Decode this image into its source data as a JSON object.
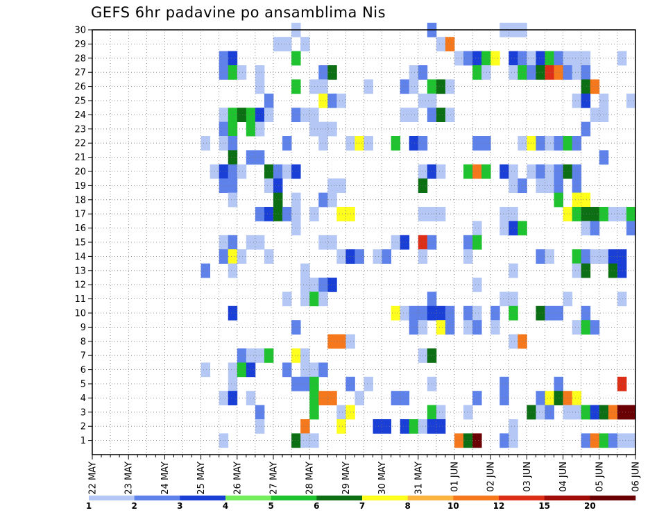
{
  "chart_data": {
    "type": "heatmap",
    "title": "GEFS 6hr padavine po ansamblima Nis",
    "x_tick_labels": [
      "22 MAY",
      "23 MAY",
      "24 MAY",
      "25 MAY",
      "26 MAY",
      "27 MAY",
      "28 MAY",
      "29 MAY",
      "30 MAY",
      "31 MAY",
      "01 JUN",
      "02 JUN",
      "03 JUN",
      "04 JUN",
      "05 JUN",
      "06 JUN"
    ],
    "y_tick_labels": [
      "1",
      "2",
      "3",
      "4",
      "5",
      "6",
      "7",
      "8",
      "9",
      "10",
      "11",
      "12",
      "13",
      "14",
      "15",
      "16",
      "17",
      "18",
      "19",
      "20",
      "21",
      "22",
      "23",
      "24",
      "25",
      "26",
      "27",
      "28",
      "29",
      "30"
    ],
    "x_steps_per_day": 4,
    "x_range_steps": [
      0,
      60
    ],
    "y_range": [
      0,
      30
    ],
    "grid": true,
    "colorbar": {
      "levels": [
        "1",
        "2",
        "3",
        "4",
        "5",
        "6",
        "7",
        "8",
        "10",
        "12",
        "15",
        "20"
      ],
      "colors": [
        "#b4c7f5",
        "#5e82ea",
        "#1a3fd6",
        "#74ee5c",
        "#1fc32f",
        "#0c6f14",
        "#ffff1e",
        "#fbb43f",
        "#f6781d",
        "#dd2f17",
        "#a20c07",
        "#6a0003"
      ]
    },
    "cells_note": "[x_step, y_member, color_index]",
    "cells": [
      [
        22,
        30,
        0
      ],
      [
        37,
        30,
        1
      ],
      [
        45,
        30,
        0
      ],
      [
        46,
        30,
        0
      ],
      [
        47,
        30,
        0
      ],
      [
        20,
        29,
        0
      ],
      [
        21,
        29,
        0
      ],
      [
        23,
        29,
        0
      ],
      [
        38,
        29,
        0
      ],
      [
        39,
        29,
        8
      ],
      [
        14,
        28,
        1
      ],
      [
        15,
        28,
        2
      ],
      [
        22,
        28,
        4
      ],
      [
        40,
        28,
        0
      ],
      [
        41,
        28,
        1
      ],
      [
        42,
        28,
        2
      ],
      [
        43,
        28,
        4
      ],
      [
        44,
        28,
        6
      ],
      [
        46,
        28,
        2
      ],
      [
        47,
        28,
        1
      ],
      [
        48,
        28,
        0
      ],
      [
        49,
        28,
        2
      ],
      [
        50,
        28,
        4
      ],
      [
        51,
        28,
        1
      ],
      [
        52,
        28,
        0
      ],
      [
        53,
        28,
        0
      ],
      [
        54,
        28,
        0
      ],
      [
        58,
        28,
        0
      ],
      [
        14,
        27,
        1
      ],
      [
        15,
        27,
        4
      ],
      [
        16,
        27,
        0
      ],
      [
        18,
        27,
        0
      ],
      [
        25,
        27,
        1
      ],
      [
        26,
        27,
        5
      ],
      [
        35,
        27,
        0
      ],
      [
        36,
        27,
        1
      ],
      [
        42,
        27,
        4
      ],
      [
        43,
        27,
        0
      ],
      [
        46,
        27,
        0
      ],
      [
        47,
        27,
        4
      ],
      [
        48,
        27,
        1
      ],
      [
        49,
        27,
        5
      ],
      [
        50,
        27,
        9
      ],
      [
        51,
        27,
        8
      ],
      [
        52,
        27,
        1
      ],
      [
        53,
        27,
        0
      ],
      [
        54,
        27,
        1
      ],
      [
        18,
        26,
        0
      ],
      [
        22,
        26,
        4
      ],
      [
        24,
        26,
        0
      ],
      [
        25,
        26,
        0
      ],
      [
        30,
        26,
        0
      ],
      [
        34,
        26,
        1
      ],
      [
        35,
        26,
        0
      ],
      [
        37,
        26,
        4
      ],
      [
        38,
        26,
        5
      ],
      [
        39,
        26,
        0
      ],
      [
        54,
        26,
        5
      ],
      [
        55,
        26,
        8
      ],
      [
        19,
        25,
        1
      ],
      [
        25,
        25,
        6
      ],
      [
        26,
        25,
        1
      ],
      [
        27,
        25,
        0
      ],
      [
        36,
        25,
        0
      ],
      [
        37,
        25,
        0
      ],
      [
        53,
        25,
        0
      ],
      [
        54,
        25,
        2
      ],
      [
        56,
        25,
        0
      ],
      [
        59,
        25,
        0
      ],
      [
        14,
        24,
        0
      ],
      [
        15,
        24,
        4
      ],
      [
        16,
        24,
        5
      ],
      [
        17,
        24,
        4
      ],
      [
        18,
        24,
        2
      ],
      [
        19,
        24,
        0
      ],
      [
        22,
        24,
        1
      ],
      [
        23,
        24,
        0
      ],
      [
        24,
        24,
        0
      ],
      [
        34,
        24,
        0
      ],
      [
        35,
        24,
        0
      ],
      [
        37,
        24,
        1
      ],
      [
        38,
        24,
        5
      ],
      [
        39,
        24,
        0
      ],
      [
        55,
        24,
        0
      ],
      [
        56,
        24,
        0
      ],
      [
        14,
        23,
        1
      ],
      [
        15,
        23,
        4
      ],
      [
        17,
        23,
        4
      ],
      [
        18,
        23,
        0
      ],
      [
        24,
        23,
        0
      ],
      [
        25,
        23,
        0
      ],
      [
        26,
        23,
        0
      ],
      [
        54,
        23,
        1
      ],
      [
        12,
        22,
        0
      ],
      [
        14,
        22,
        0
      ],
      [
        15,
        22,
        1
      ],
      [
        21,
        22,
        1
      ],
      [
        25,
        22,
        0
      ],
      [
        28,
        22,
        0
      ],
      [
        29,
        22,
        6
      ],
      [
        30,
        22,
        0
      ],
      [
        33,
        22,
        4
      ],
      [
        35,
        22,
        2
      ],
      [
        36,
        22,
        1
      ],
      [
        42,
        22,
        1
      ],
      [
        43,
        22,
        1
      ],
      [
        47,
        22,
        0
      ],
      [
        48,
        22,
        6
      ],
      [
        49,
        22,
        1
      ],
      [
        50,
        22,
        0
      ],
      [
        51,
        22,
        1
      ],
      [
        52,
        22,
        4
      ],
      [
        53,
        22,
        1
      ],
      [
        15,
        21,
        5
      ],
      [
        17,
        21,
        1
      ],
      [
        18,
        21,
        1
      ],
      [
        56,
        21,
        1
      ],
      [
        13,
        20,
        0
      ],
      [
        14,
        20,
        2
      ],
      [
        15,
        20,
        1
      ],
      [
        16,
        20,
        0
      ],
      [
        19,
        20,
        5
      ],
      [
        20,
        20,
        1
      ],
      [
        21,
        20,
        0
      ],
      [
        22,
        20,
        2
      ],
      [
        36,
        20,
        0
      ],
      [
        37,
        20,
        2
      ],
      [
        38,
        20,
        0
      ],
      [
        41,
        20,
        4
      ],
      [
        42,
        20,
        8
      ],
      [
        43,
        20,
        4
      ],
      [
        45,
        20,
        2
      ],
      [
        46,
        20,
        0
      ],
      [
        48,
        20,
        0
      ],
      [
        49,
        20,
        1
      ],
      [
        50,
        20,
        0
      ],
      [
        51,
        20,
        1
      ],
      [
        52,
        20,
        5
      ],
      [
        53,
        20,
        1
      ],
      [
        14,
        19,
        1
      ],
      [
        15,
        19,
        1
      ],
      [
        19,
        19,
        0
      ],
      [
        20,
        19,
        2
      ],
      [
        26,
        19,
        0
      ],
      [
        27,
        19,
        0
      ],
      [
        36,
        19,
        5
      ],
      [
        46,
        19,
        0
      ],
      [
        47,
        19,
        1
      ],
      [
        49,
        19,
        0
      ],
      [
        50,
        19,
        0
      ],
      [
        51,
        19,
        1
      ],
      [
        53,
        19,
        1
      ],
      [
        15,
        18,
        0
      ],
      [
        20,
        18,
        5
      ],
      [
        22,
        18,
        0
      ],
      [
        25,
        18,
        1
      ],
      [
        26,
        18,
        0
      ],
      [
        51,
        18,
        4
      ],
      [
        53,
        18,
        6
      ],
      [
        54,
        18,
        6
      ],
      [
        18,
        17,
        1
      ],
      [
        19,
        17,
        2
      ],
      [
        20,
        17,
        5
      ],
      [
        21,
        17,
        1
      ],
      [
        22,
        17,
        0
      ],
      [
        24,
        17,
        0
      ],
      [
        27,
        17,
        6
      ],
      [
        28,
        17,
        6
      ],
      [
        36,
        17,
        0
      ],
      [
        37,
        17,
        0
      ],
      [
        38,
        17,
        0
      ],
      [
        45,
        17,
        0
      ],
      [
        46,
        17,
        0
      ],
      [
        52,
        17,
        6
      ],
      [
        53,
        17,
        4
      ],
      [
        54,
        17,
        5
      ],
      [
        55,
        17,
        5
      ],
      [
        56,
        17,
        4
      ],
      [
        57,
        17,
        0
      ],
      [
        58,
        17,
        0
      ],
      [
        59,
        17,
        4
      ],
      [
        22,
        16,
        0
      ],
      [
        42,
        16,
        0
      ],
      [
        45,
        16,
        0
      ],
      [
        46,
        16,
        2
      ],
      [
        47,
        16,
        4
      ],
      [
        54,
        16,
        0
      ],
      [
        55,
        16,
        1
      ],
      [
        59,
        16,
        1
      ],
      [
        14,
        15,
        0
      ],
      [
        15,
        15,
        1
      ],
      [
        17,
        15,
        0
      ],
      [
        18,
        15,
        0
      ],
      [
        25,
        15,
        0
      ],
      [
        26,
        15,
        0
      ],
      [
        33,
        15,
        0
      ],
      [
        34,
        15,
        2
      ],
      [
        36,
        15,
        9
      ],
      [
        37,
        15,
        1
      ],
      [
        41,
        15,
        1
      ],
      [
        42,
        15,
        4
      ],
      [
        14,
        14,
        1
      ],
      [
        15,
        14,
        6
      ],
      [
        16,
        14,
        0
      ],
      [
        19,
        14,
        0
      ],
      [
        27,
        14,
        0
      ],
      [
        28,
        14,
        2
      ],
      [
        29,
        14,
        1
      ],
      [
        31,
        14,
        0
      ],
      [
        32,
        14,
        1
      ],
      [
        36,
        14,
        0
      ],
      [
        41,
        14,
        0
      ],
      [
        49,
        14,
        1
      ],
      [
        50,
        14,
        0
      ],
      [
        53,
        14,
        4
      ],
      [
        54,
        14,
        1
      ],
      [
        55,
        14,
        0
      ],
      [
        56,
        14,
        0
      ],
      [
        57,
        14,
        2
      ],
      [
        58,
        14,
        2
      ],
      [
        12,
        13,
        1
      ],
      [
        15,
        13,
        0
      ],
      [
        23,
        13,
        0
      ],
      [
        46,
        13,
        0
      ],
      [
        53,
        13,
        0
      ],
      [
        54,
        13,
        5
      ],
      [
        57,
        13,
        5
      ],
      [
        58,
        13,
        2
      ],
      [
        23,
        12,
        0
      ],
      [
        24,
        12,
        0
      ],
      [
        25,
        12,
        1
      ],
      [
        26,
        12,
        2
      ],
      [
        42,
        12,
        0
      ],
      [
        21,
        11,
        0
      ],
      [
        23,
        11,
        0
      ],
      [
        24,
        11,
        4
      ],
      [
        25,
        11,
        0
      ],
      [
        37,
        11,
        1
      ],
      [
        45,
        11,
        0
      ],
      [
        46,
        11,
        0
      ],
      [
        52,
        11,
        0
      ],
      [
        58,
        11,
        0
      ],
      [
        15,
        10,
        2
      ],
      [
        33,
        10,
        6
      ],
      [
        34,
        10,
        0
      ],
      [
        35,
        10,
        1
      ],
      [
        36,
        10,
        1
      ],
      [
        37,
        10,
        2
      ],
      [
        38,
        10,
        2
      ],
      [
        39,
        10,
        1
      ],
      [
        41,
        10,
        1
      ],
      [
        42,
        10,
        0
      ],
      [
        44,
        10,
        1
      ],
      [
        46,
        10,
        4
      ],
      [
        49,
        10,
        5
      ],
      [
        50,
        10,
        1
      ],
      [
        51,
        10,
        1
      ],
      [
        54,
        10,
        1
      ],
      [
        22,
        9,
        1
      ],
      [
        35,
        9,
        1
      ],
      [
        36,
        9,
        0
      ],
      [
        38,
        9,
        6
      ],
      [
        39,
        9,
        1
      ],
      [
        41,
        9,
        0
      ],
      [
        42,
        9,
        1
      ],
      [
        44,
        9,
        0
      ],
      [
        53,
        9,
        0
      ],
      [
        54,
        9,
        4
      ],
      [
        55,
        9,
        1
      ],
      [
        26,
        8,
        8
      ],
      [
        27,
        8,
        8
      ],
      [
        28,
        8,
        0
      ],
      [
        46,
        8,
        0
      ],
      [
        47,
        8,
        8
      ],
      [
        16,
        7,
        1
      ],
      [
        17,
        7,
        0
      ],
      [
        18,
        7,
        0
      ],
      [
        19,
        7,
        4
      ],
      [
        22,
        7,
        6
      ],
      [
        23,
        7,
        0
      ],
      [
        36,
        7,
        0
      ],
      [
        37,
        7,
        5
      ],
      [
        12,
        6,
        0
      ],
      [
        15,
        6,
        0
      ],
      [
        16,
        6,
        4
      ],
      [
        17,
        6,
        2
      ],
      [
        21,
        6,
        1
      ],
      [
        23,
        6,
        0
      ],
      [
        24,
        6,
        0
      ],
      [
        25,
        6,
        1
      ],
      [
        15,
        5,
        0
      ],
      [
        22,
        5,
        1
      ],
      [
        23,
        5,
        1
      ],
      [
        24,
        5,
        4
      ],
      [
        28,
        5,
        1
      ],
      [
        30,
        5,
        0
      ],
      [
        37,
        5,
        0
      ],
      [
        45,
        5,
        1
      ],
      [
        51,
        5,
        1
      ],
      [
        58,
        5,
        9
      ],
      [
        14,
        4,
        0
      ],
      [
        15,
        4,
        2
      ],
      [
        17,
        4,
        0
      ],
      [
        24,
        4,
        4
      ],
      [
        25,
        4,
        8
      ],
      [
        26,
        4,
        8
      ],
      [
        29,
        4,
        0
      ],
      [
        33,
        4,
        1
      ],
      [
        34,
        4,
        1
      ],
      [
        42,
        4,
        1
      ],
      [
        45,
        4,
        1
      ],
      [
        49,
        4,
        1
      ],
      [
        50,
        4,
        6
      ],
      [
        51,
        4,
        5
      ],
      [
        52,
        4,
        8
      ],
      [
        53,
        4,
        6
      ],
      [
        18,
        3,
        1
      ],
      [
        24,
        3,
        4
      ],
      [
        27,
        3,
        0
      ],
      [
        28,
        3,
        6
      ],
      [
        37,
        3,
        4
      ],
      [
        38,
        3,
        0
      ],
      [
        41,
        3,
        0
      ],
      [
        48,
        3,
        5
      ],
      [
        49,
        3,
        0
      ],
      [
        50,
        3,
        1
      ],
      [
        52,
        3,
        0
      ],
      [
        53,
        3,
        0
      ],
      [
        54,
        3,
        4
      ],
      [
        55,
        3,
        2
      ],
      [
        56,
        3,
        5
      ],
      [
        57,
        3,
        8
      ],
      [
        58,
        3,
        11
      ],
      [
        59,
        3,
        11
      ],
      [
        18,
        2,
        0
      ],
      [
        23,
        2,
        8
      ],
      [
        27,
        2,
        6
      ],
      [
        31,
        2,
        2
      ],
      [
        32,
        2,
        2
      ],
      [
        34,
        2,
        2
      ],
      [
        35,
        2,
        4
      ],
      [
        36,
        2,
        0
      ],
      [
        37,
        2,
        2
      ],
      [
        38,
        2,
        2
      ],
      [
        46,
        2,
        0
      ],
      [
        14,
        1,
        0
      ],
      [
        22,
        1,
        5
      ],
      [
        23,
        1,
        0
      ],
      [
        24,
        1,
        0
      ],
      [
        40,
        1,
        8
      ],
      [
        41,
        1,
        5
      ],
      [
        42,
        1,
        11
      ],
      [
        45,
        1,
        1
      ],
      [
        46,
        1,
        0
      ],
      [
        54,
        1,
        1
      ],
      [
        55,
        1,
        8
      ],
      [
        56,
        1,
        4
      ],
      [
        57,
        1,
        1
      ],
      [
        58,
        1,
        0
      ],
      [
        59,
        1,
        0
      ]
    ]
  }
}
